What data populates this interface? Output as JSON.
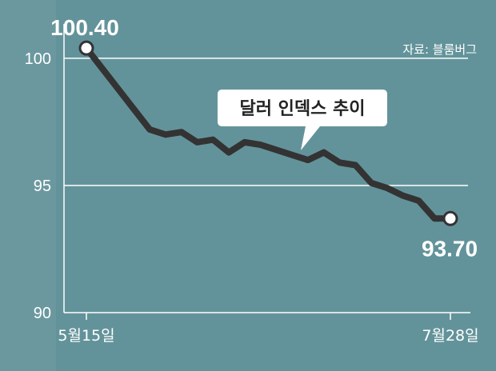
{
  "source_note": "자료: 블룸버그",
  "callout": "달러 인덱스 추이",
  "colors": {
    "background": "#63939a",
    "line": "#333333",
    "grid": "#ffffff",
    "marker_fill": "#ffffff",
    "callout_bg": "#ffffff"
  },
  "chart_data": {
    "type": "line",
    "title": "달러 인덱스 추이",
    "xlabel": "",
    "ylabel": "",
    "x_tick_labels": [
      "5월15일",
      "7월28일"
    ],
    "y_ticks": [
      90,
      95,
      100
    ],
    "ylim": [
      90,
      101.6
    ],
    "grid": "horizontal",
    "series": [
      {
        "values": [
          100.4,
          99.6,
          98.8,
          98.0,
          97.2,
          97.0,
          97.1,
          96.7,
          96.8,
          96.3,
          96.7,
          96.6,
          96.4,
          96.2,
          96.0,
          96.3,
          95.9,
          95.8,
          95.1,
          94.9,
          94.6,
          94.4,
          93.7,
          93.7
        ],
        "start_label": "100.40",
        "end_label": "93.70"
      }
    ]
  }
}
